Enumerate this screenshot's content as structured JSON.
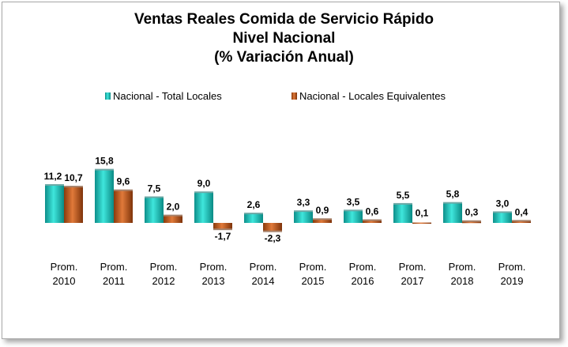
{
  "chart_data": {
    "type": "bar",
    "title": [
      "Ventas Reales Comida de Servicio Rápido",
      "Nivel Nacional",
      "(% Variación Anual)"
    ],
    "categories": [
      [
        "Prom.",
        "2010"
      ],
      [
        "Prom.",
        "2011"
      ],
      [
        "Prom.",
        "2012"
      ],
      [
        "Prom.",
        "2013"
      ],
      [
        "Prom.",
        "2014"
      ],
      [
        "Prom.",
        "2015"
      ],
      [
        "Prom.",
        "2016"
      ],
      [
        "Prom.",
        "2017"
      ],
      [
        "Prom.",
        "2018"
      ],
      [
        "Prom.",
        "2019"
      ]
    ],
    "series": [
      {
        "name": "Nacional - Total Locales",
        "values": [
          11.2,
          15.8,
          7.5,
          9.0,
          2.6,
          3.3,
          3.5,
          5.5,
          5.8,
          3.0
        ],
        "labels": [
          "11,2",
          "15,8",
          "7,5",
          "9,0",
          "2,6",
          "3,3",
          "3,5",
          "5,5",
          "5,8",
          "3,0"
        ],
        "color": "#1fc9c0"
      },
      {
        "name": "Nacional - Locales Equivalentes",
        "values": [
          10.7,
          9.6,
          2.0,
          -1.7,
          -2.3,
          0.9,
          0.6,
          0.1,
          0.3,
          0.4
        ],
        "labels": [
          "10,7",
          "9,6",
          "2,0",
          "-1,7",
          "-2,3",
          "0,9",
          "0,6",
          "0,1",
          "0,3",
          "0,4"
        ],
        "color": "#b8561a"
      }
    ],
    "legend": "top",
    "grid": false,
    "ylim": [
      -3,
      16
    ]
  }
}
